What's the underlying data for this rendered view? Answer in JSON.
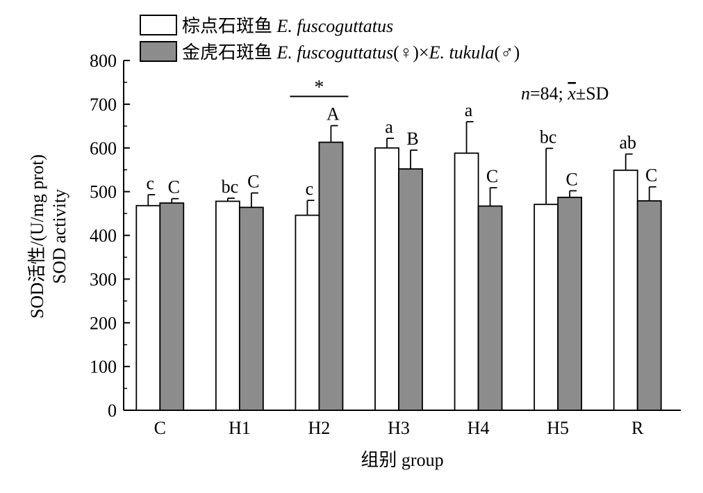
{
  "chart_data": {
    "type": "bar",
    "categories": [
      "C",
      "H1",
      "H2",
      "H3",
      "H4",
      "H5",
      "R"
    ],
    "series": [
      {
        "name_cn": "棕点石斑鱼",
        "name_latin": "E. fuscoguttatus",
        "color": "#ffffff",
        "values": [
          468,
          478,
          446,
          600,
          588,
          471,
          549
        ],
        "errors": [
          25,
          7,
          34,
          22,
          72,
          128,
          37
        ],
        "letters": [
          "c",
          "bc",
          "c",
          "a",
          "a",
          "bc",
          "ab"
        ]
      },
      {
        "name_cn": "金虎石斑鱼",
        "name_latin": "E. fuscoguttatus",
        "name_cross": "(♀)×",
        "name_latin2": "E. tukula",
        "name_suffix": "(♂)",
        "color": "#8c8c8c",
        "values": [
          474,
          464,
          613,
          552,
          467,
          487,
          479
        ],
        "errors": [
          10,
          33,
          38,
          43,
          42,
          15,
          32
        ],
        "letters": [
          "C",
          "C",
          "A",
          "B",
          "C",
          "C",
          "C"
        ]
      }
    ],
    "ylabel_cn": "SOD活性/(U/mg prot)",
    "ylabel_en": "SOD activity",
    "xlabel": "组别 group",
    "ylim": [
      0,
      800
    ],
    "yticks": [
      0,
      100,
      200,
      300,
      400,
      500,
      600,
      700,
      800
    ],
    "stats_italic": "n",
    "stats_mid": "=84; ",
    "stats_xbar": "x",
    "stats_tail": "±SD",
    "significance": {
      "category": "H2",
      "symbol": "*"
    },
    "legend_position": "top-left",
    "grid": false
  }
}
